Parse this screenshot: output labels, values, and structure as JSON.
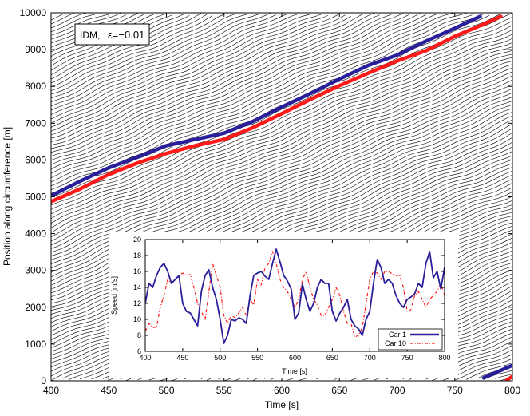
{
  "chart_data": [
    {
      "id": "main",
      "type": "line",
      "title": "",
      "xlabel": "Time [s]",
      "ylabel": "Position along circumference [m]",
      "xlim": [
        400,
        800
      ],
      "ylim": [
        0,
        10000
      ],
      "xticks": [
        400,
        450,
        500,
        550,
        600,
        650,
        700,
        750,
        800
      ],
      "yticks": [
        0,
        1000,
        2000,
        3000,
        4000,
        5000,
        6000,
        7000,
        8000,
        9000,
        10000
      ],
      "annotation": {
        "model": "IDM,",
        "epsilon": "ε=−0.01"
      },
      "background_trajectories": {
        "description_note": "dense black trajectories of all vehicles on the ring",
        "avg_speed_mps": 13.2,
        "spacing_m": 110,
        "wraps_at_m": 10000
      },
      "series": [
        {
          "name": "Car 1",
          "color": "#2a1f9a",
          "x": [
            400,
            425,
            450,
            475,
            500,
            525,
            550,
            575,
            600,
            625,
            650,
            675,
            700,
            725,
            750,
            772,
            775,
            800
          ],
          "y": [
            5030,
            5420,
            5790,
            6080,
            6390,
            6560,
            6730,
            7050,
            7440,
            7810,
            8200,
            8570,
            8850,
            9230,
            9580,
            9900,
            80,
            420
          ]
        },
        {
          "name": "Car 10",
          "color": "#ff1a1a",
          "x": [
            400,
            425,
            450,
            475,
            500,
            525,
            550,
            575,
            600,
            625,
            650,
            675,
            700,
            725,
            750,
            775,
            790,
            795,
            800
          ],
          "y": [
            4870,
            5210,
            5610,
            5920,
            6180,
            6390,
            6560,
            6880,
            7260,
            7650,
            8020,
            8360,
            8690,
            8970,
            9360,
            9690,
            9900,
            20,
            120
          ]
        }
      ]
    },
    {
      "id": "inset",
      "type": "line",
      "xlabel": "Time [s]",
      "ylabel": "Speed [m/s]",
      "xlim": [
        400,
        800
      ],
      "ylim": [
        6,
        20
      ],
      "xticks": [
        400,
        450,
        500,
        550,
        600,
        650,
        700,
        750,
        800
      ],
      "yticks": [
        6,
        8,
        10,
        12,
        14,
        16,
        18,
        20
      ],
      "legend": {
        "position": "bottom-right"
      },
      "series": [
        {
          "name": "Car 1",
          "color": "#2a1f9a",
          "style": "solid",
          "x": [
            400,
            405,
            410,
            415,
            420,
            425,
            430,
            435,
            440,
            445,
            450,
            455,
            460,
            465,
            470,
            475,
            480,
            485,
            490,
            495,
            500,
            505,
            510,
            515,
            520,
            525,
            530,
            535,
            540,
            545,
            550,
            555,
            560,
            565,
            570,
            575,
            580,
            585,
            590,
            595,
            600,
            605,
            610,
            615,
            620,
            625,
            630,
            635,
            640,
            645,
            650,
            655,
            660,
            665,
            670,
            675,
            680,
            685,
            690,
            695,
            700,
            705,
            710,
            715,
            720,
            725,
            730,
            735,
            740,
            745,
            750,
            755,
            760,
            765,
            770,
            775,
            780,
            785,
            790,
            795,
            800
          ],
          "y": [
            12,
            14.5,
            14,
            15.5,
            16.5,
            17,
            16,
            14.5,
            15,
            15.5,
            12,
            11,
            10.8,
            10,
            9.2,
            13.5,
            15.5,
            16.2,
            14,
            12.5,
            10,
            7,
            8,
            10,
            9.8,
            10.2,
            10,
            9.5,
            13,
            15.5,
            15.8,
            16,
            15.4,
            15,
            17,
            18.8,
            17.2,
            15.5,
            14.8,
            13.8,
            10,
            10.8,
            14.4,
            12.5,
            11,
            12,
            14,
            15,
            14.5,
            14.5,
            11,
            9.8,
            10.8,
            11.5,
            12.5,
            10,
            9.2,
            8.8,
            8,
            10,
            11,
            14.5,
            17.5,
            16.5,
            14.5,
            15,
            14.5,
            13,
            12,
            11.5,
            12.5,
            12.8,
            13.2,
            14.5,
            14,
            17,
            18.5,
            15.2,
            16,
            13.8,
            16.5
          ]
        },
        {
          "name": "Car 10",
          "color": "#ff1a1a",
          "style": "dash-dot",
          "x": [
            400,
            405,
            410,
            415,
            420,
            425,
            430,
            435,
            440,
            445,
            450,
            455,
            460,
            465,
            470,
            475,
            480,
            485,
            490,
            495,
            500,
            505,
            510,
            515,
            520,
            525,
            530,
            535,
            540,
            545,
            550,
            555,
            560,
            565,
            570,
            575,
            580,
            585,
            590,
            595,
            600,
            605,
            610,
            615,
            620,
            625,
            630,
            635,
            640,
            645,
            650,
            655,
            660,
            665,
            670,
            675,
            680,
            685,
            690,
            695,
            700,
            705,
            710,
            715,
            720,
            725,
            730,
            735,
            740,
            745,
            750,
            755,
            760,
            765,
            770,
            775,
            780,
            785,
            790,
            795,
            800
          ],
          "y": [
            8.5,
            9.5,
            9,
            9,
            11.5,
            13,
            15,
            14.5,
            15,
            15.5,
            15.8,
            15.5,
            15.6,
            14,
            12,
            11,
            10,
            13.5,
            17,
            15.5,
            14,
            10.5,
            9.5,
            10.5,
            10.2,
            10.8,
            11.5,
            10.5,
            12.5,
            11.8,
            15,
            14.3,
            16.5,
            17,
            18.5,
            17,
            15,
            14,
            13.5,
            12.5,
            11.5,
            12.5,
            15,
            16,
            14,
            12.5,
            11.8,
            10.5,
            10.5,
            11.5,
            12.5,
            14,
            13,
            11,
            9.5,
            9.5,
            7.8,
            8,
            9,
            12,
            15,
            16,
            15.8,
            15,
            16,
            16,
            15.7,
            15.5,
            15.5,
            14,
            11,
            11.2,
            13,
            13.5,
            12.5,
            11.5,
            12.5,
            13,
            13.5,
            14.5,
            13
          ]
        }
      ]
    }
  ]
}
